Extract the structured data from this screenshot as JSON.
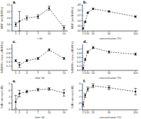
{
  "chart_data": [
    {
      "type": "line",
      "title": "a.",
      "xlabel": "t (d)",
      "ylabel": "MBF (arb/B/MHz)",
      "x": [
        1,
        2,
        4,
        7,
        10,
        14
      ],
      "values": [
        -54.0,
        -53.5,
        -53.0,
        -52.8,
        -51.5,
        -54.5
      ],
      "errors": [
        0.3,
        1.5,
        0.3,
        0.3,
        0.3,
        0.3
      ],
      "xlim": [
        0,
        15
      ],
      "xticks": [
        1,
        2,
        4,
        7,
        10,
        14
      ],
      "ylim": [
        -55,
        -51
      ],
      "yticks": [
        -55,
        -54,
        -53,
        -52,
        -51
      ],
      "color": "#000000",
      "marker": "square",
      "line_style": "dashed",
      "grid": false
    },
    {
      "type": "line",
      "title": "b.",
      "xlabel": "concentration (%)",
      "ylabel": "MBF (arb/B/MHz)",
      "x": [
        1,
        5,
        10,
        20,
        50,
        100
      ],
      "values": [
        -57.0,
        -54.5,
        -51.0,
        -49.5,
        -50.5,
        -52.5
      ],
      "errors": [
        0.3,
        0.3,
        0.3,
        0.3,
        0.3,
        0.3
      ],
      "xlim": [
        0,
        105
      ],
      "xticks": [
        1,
        5,
        10,
        20,
        50,
        100
      ],
      "ylim": [
        -58,
        -48
      ],
      "yticks": [
        -58,
        -56,
        -54,
        -52,
        -50,
        -48
      ],
      "color": "#000000",
      "marker": "square",
      "line_style": "dashed",
      "grid": false
    },
    {
      "type": "line",
      "title": "c.",
      "xlabel": "time (d)",
      "ylabel": "0dB/MHz slope (dB/MHz)",
      "x": [
        1,
        2,
        4,
        7,
        10,
        14
      ],
      "values": [
        0.45,
        0.25,
        0.45,
        0.55,
        0.95,
        0.55
      ],
      "errors": [
        0.05,
        0.12,
        0.05,
        0.05,
        0.05,
        0.05
      ],
      "xlim": [
        0,
        15
      ],
      "xticks": [
        1,
        2,
        4,
        7,
        10,
        14
      ],
      "ylim": [
        0,
        1.2
      ],
      "yticks": [
        0.2,
        0.4,
        0.6,
        0.8,
        {
          "value": 1,
          "label": "1.0"
        }
      ],
      "color": "#000000",
      "marker": "square",
      "line_style": "dashed",
      "grid": false
    },
    {
      "type": "line",
      "title": "d.",
      "xlabel": "concentration (%)",
      "ylabel": "0dB/MHz slope (dB/MHz)",
      "x": [
        1,
        5,
        10,
        20,
        50,
        100
      ],
      "values": [
        0.1,
        0.5,
        0.85,
        1.05,
        0.85,
        0.75
      ],
      "errors": [
        0.05,
        0.05,
        0.05,
        0.05,
        0.05,
        0.05
      ],
      "xlim": [
        0,
        105
      ],
      "xticks": [
        1,
        5,
        10,
        20,
        50,
        100
      ],
      "ylim": [
        0,
        1.2
      ],
      "yticks": [
        {
          "value": 0,
          "label": "0.0"
        },
        0.2,
        0.4,
        0.6,
        0.8,
        {
          "value": 1,
          "label": "1.0"
        }
      ],
      "color": "#000000",
      "marker": "square",
      "line_style": "dashed",
      "grid": false
    },
    {
      "type": "line",
      "title": "e.",
      "xlabel": "time (d)",
      "ylabel": "0dB intercept (dB)",
      "x": [
        1,
        2,
        4,
        7,
        10,
        14
      ],
      "values": [
        -7.8,
        -6.5,
        -6.2,
        -5.9,
        -5.8,
        -6.4
      ],
      "errors": [
        1.0,
        0.5,
        0.2,
        0.2,
        0.2,
        0.5
      ],
      "xlim": [
        0,
        15
      ],
      "xticks": [
        1,
        2,
        4,
        7,
        10,
        14
      ],
      "ylim": [
        -9,
        -5
      ],
      "yticks": [
        -9,
        -8,
        -7,
        -6,
        -5
      ],
      "color": "#000000",
      "marker": "square",
      "line_style": "dashed",
      "grid": false
    },
    {
      "type": "line",
      "title": "f.",
      "xlabel": "concentration (%)",
      "ylabel": "0dB intercept (dB)",
      "x": [
        1,
        5,
        10,
        20,
        50,
        100
      ],
      "values": [
        -8.2,
        -6.8,
        -5.8,
        -5.3,
        -5.6,
        -6.2
      ],
      "errors": [
        0.3,
        0.3,
        0.3,
        0.3,
        0.3,
        0.5
      ],
      "xlim": [
        0,
        105
      ],
      "xticks": [
        1,
        5,
        10,
        20,
        50,
        100
      ],
      "ylim": [
        -9,
        -5
      ],
      "yticks": [
        -9,
        -8,
        -7,
        -6,
        -5
      ],
      "color": "#000000",
      "marker": "square",
      "line_style": "dashed",
      "grid": false
    }
  ]
}
